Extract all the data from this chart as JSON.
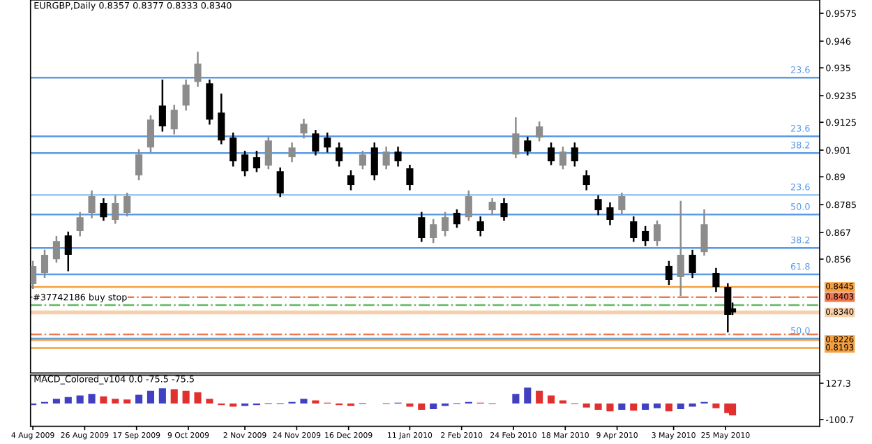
{
  "chart_data": [
    {
      "type": "candlestick",
      "title": "EURGBP,Daily 0.8357 0.8377 0.8333 0.8340",
      "x": [
        "2009-08-04",
        "2009-08-09",
        "2009-08-14",
        "2009-08-19",
        "2009-08-24",
        "2009-08-29",
        "2009-09-03",
        "2009-09-08",
        "2009-09-13",
        "2009-09-18",
        "2009-09-23",
        "2009-09-28",
        "2009-10-03",
        "2009-10-08",
        "2009-10-13",
        "2009-10-18",
        "2009-10-23",
        "2009-10-28",
        "2009-11-02",
        "2009-11-07",
        "2009-11-12",
        "2009-11-17",
        "2009-11-22",
        "2009-11-27",
        "2009-12-02",
        "2009-12-07",
        "2009-12-12",
        "2009-12-17",
        "2009-12-22",
        "2009-12-27",
        "2010-01-01",
        "2010-01-06",
        "2010-01-11",
        "2010-01-16",
        "2010-01-21",
        "2010-01-26",
        "2010-01-31",
        "2010-02-05",
        "2010-02-10",
        "2010-02-15",
        "2010-02-20",
        "2010-02-25",
        "2010-03-02",
        "2010-03-07",
        "2010-03-12",
        "2010-03-17",
        "2010-03-22",
        "2010-03-27",
        "2010-04-01",
        "2010-04-06",
        "2010-04-11",
        "2010-04-16",
        "2010-04-21",
        "2010-04-26",
        "2010-05-01",
        "2010-05-06",
        "2010-05-11",
        "2010-05-16",
        "2010-05-21",
        "2010-05-26",
        "2010-05-28"
      ],
      "ohlc": [
        [
          0.8457,
          0.8549,
          0.844,
          0.8532
        ],
        [
          0.8503,
          0.8595,
          0.8486,
          0.8578
        ],
        [
          0.856,
          0.8652,
          0.8549,
          0.8635
        ],
        [
          0.8658,
          0.867,
          0.8514,
          0.8578
        ],
        [
          0.8676,
          0.8751,
          0.8658,
          0.8733
        ],
        [
          0.8751,
          0.884,
          0.8733,
          0.882
        ],
        [
          0.8791,
          0.8808,
          0.8722,
          0.8733
        ],
        [
          0.8722,
          0.882,
          0.871,
          0.8791
        ],
        [
          0.8751,
          0.8831,
          0.874,
          0.882
        ],
        [
          0.8906,
          0.901,
          0.8889,
          0.8992
        ],
        [
          0.9021,
          0.915,
          0.9004,
          0.9136
        ],
        [
          0.9194,
          0.9298,
          0.909,
          0.9108
        ],
        [
          0.9096,
          0.9194,
          0.9079,
          0.9177
        ],
        [
          0.9194,
          0.9298,
          0.9177,
          0.928
        ],
        [
          0.9292,
          0.9413,
          0.9275,
          0.9367
        ],
        [
          0.9286,
          0.9298,
          0.9119,
          0.9136
        ],
        [
          0.9165,
          0.924,
          0.9038,
          0.905
        ],
        [
          0.9062,
          0.9079,
          0.8946,
          0.8964
        ],
        [
          0.8992,
          0.9004,
          0.8906,
          0.8923
        ],
        [
          0.8981,
          0.9004,
          0.8923,
          0.8935
        ],
        [
          0.8946,
          0.9062,
          0.8935,
          0.905
        ],
        [
          0.8923,
          0.8935,
          0.882,
          0.8831
        ],
        [
          0.8981,
          0.9038,
          0.8964,
          0.9021
        ],
        [
          0.9079,
          0.9136,
          0.9062,
          0.9119
        ],
        [
          0.9079,
          0.909,
          0.8992,
          0.9004
        ],
        [
          0.9062,
          0.9079,
          0.9004,
          0.9021
        ],
        [
          0.9021,
          0.9038,
          0.8946,
          0.8964
        ],
        [
          0.8906,
          0.8923,
          0.8848,
          0.8866
        ],
        [
          0.8946,
          0.9004,
          0.8935,
          0.8992
        ],
        [
          0.9021,
          0.9038,
          0.8889,
          0.8906
        ],
        [
          0.8946,
          0.9021,
          0.8935,
          0.9004
        ],
        [
          0.9004,
          0.9021,
          0.8946,
          0.8964
        ],
        [
          0.8935,
          0.8946,
          0.8848,
          0.8866
        ],
        [
          0.8733,
          0.8751,
          0.8635,
          0.8647
        ],
        [
          0.8647,
          0.8722,
          0.863,
          0.8704
        ],
        [
          0.8676,
          0.8751,
          0.8658,
          0.8733
        ],
        [
          0.8751,
          0.8762,
          0.8693,
          0.8704
        ],
        [
          0.8733,
          0.884,
          0.8722,
          0.882
        ],
        [
          0.8716,
          0.8733,
          0.8658,
          0.8676
        ],
        [
          0.8762,
          0.8808,
          0.8745,
          0.8797
        ],
        [
          0.8791,
          0.8808,
          0.8722,
          0.8733
        ],
        [
          0.8992,
          0.9142,
          0.8981,
          0.9079
        ],
        [
          0.905,
          0.9062,
          0.8992,
          0.9004
        ],
        [
          0.9062,
          0.9125,
          0.905,
          0.9108
        ],
        [
          0.9021,
          0.9038,
          0.8952,
          0.8964
        ],
        [
          0.8946,
          0.9021,
          0.8935,
          0.9004
        ],
        [
          0.9021,
          0.9038,
          0.8946,
          0.8964
        ],
        [
          0.8906,
          0.8923,
          0.8848,
          0.8866
        ],
        [
          0.8808,
          0.882,
          0.8745,
          0.8762
        ],
        [
          0.8774,
          0.8791,
          0.8704,
          0.8722
        ],
        [
          0.8762,
          0.8831,
          0.8751,
          0.882
        ],
        [
          0.8716,
          0.8733,
          0.8635,
          0.8647
        ],
        [
          0.8676,
          0.8693,
          0.8618,
          0.8635
        ],
        [
          0.8635,
          0.8716,
          0.8618,
          0.8704
        ],
        [
          0.8532,
          0.8549,
          0.8457,
          0.8474
        ],
        [
          0.8486,
          0.8797,
          0.8411,
          0.8578
        ],
        [
          0.8578,
          0.8595,
          0.8486,
          0.8503
        ],
        [
          0.8589,
          0.8762,
          0.8578,
          0.8704
        ],
        [
          0.8503,
          0.852,
          0.8428,
          0.8445
        ],
        [
          0.8445,
          0.8457,
          0.8261,
          0.833
        ],
        [
          0.8357,
          0.8377,
          0.8333,
          0.834
        ]
      ],
      "colors": [
        "#8c8c8c",
        "#8c8c8c",
        "#8c8c8c",
        "#000000",
        "#8c8c8c",
        "#8c8c8c",
        "#000000",
        "#8c8c8c",
        "#8c8c8c",
        "#8c8c8c",
        "#8c8c8c",
        "#000000",
        "#8c8c8c",
        "#8c8c8c",
        "#8c8c8c",
        "#000000",
        "#000000",
        "#000000",
        "#000000",
        "#000000",
        "#8c8c8c",
        "#000000",
        "#8c8c8c",
        "#8c8c8c",
        "#000000",
        "#000000",
        "#000000",
        "#000000",
        "#8c8c8c",
        "#000000",
        "#8c8c8c",
        "#000000",
        "#000000",
        "#000000",
        "#8c8c8c",
        "#8c8c8c",
        "#000000",
        "#8c8c8c",
        "#000000",
        "#8c8c8c",
        "#000000",
        "#8c8c8c",
        "#000000",
        "#8c8c8c",
        "#000000",
        "#8c8c8c",
        "#000000",
        "#000000",
        "#000000",
        "#000000",
        "#8c8c8c",
        "#000000",
        "#000000",
        "#8c8c8c",
        "#000000",
        "#8c8c8c",
        "#000000",
        "#8c8c8c",
        "#000000",
        "#000000",
        "#000000"
      ],
      "xlim": [
        "2009-08-03",
        "2010-07-04"
      ],
      "ylim": [
        0.809,
        0.963
      ],
      "yticks": [
        0.9575,
        0.946,
        0.935,
        0.9235,
        0.9125,
        0.901,
        0.89,
        0.8785,
        0.867,
        0.856
      ],
      "tick_labels": "y",
      "ref_lines": [
        {
          "axis": "y",
          "value": 0.9309,
          "color": "#5a9be6",
          "line_style": "solid"
        },
        {
          "axis": "y",
          "value": 0.9067,
          "color": "#5a9be6",
          "line_style": "solid"
        },
        {
          "axis": "y",
          "value": 0.8998,
          "color": "#5a9be6",
          "line_style": "solid"
        },
        {
          "axis": "y",
          "value": 0.8825,
          "color": "#9cc8f0",
          "line_style": "solid"
        },
        {
          "axis": "y",
          "value": 0.8744,
          "color": "#5a9be6",
          "line_style": "solid"
        },
        {
          "axis": "y",
          "value": 0.8606,
          "color": "#5a9be6",
          "line_style": "solid"
        },
        {
          "axis": "y",
          "value": 0.8497,
          "color": "#5a9be6",
          "line_style": "solid"
        },
        {
          "axis": "y",
          "value": 0.8445,
          "label": "0.8445",
          "color": "#f5a040",
          "line_style": "solid"
        },
        {
          "axis": "y",
          "value": 0.8403,
          "label": "0.8403",
          "color": "#f07850",
          "line_style": "dashdot"
        },
        {
          "axis": "y",
          "value": 0.837,
          "color": "#60b860",
          "line_style": "dashdot"
        },
        {
          "axis": "y",
          "value": 0.834,
          "label": "0.8340",
          "color": "#f8cfa8",
          "line_style": "solid"
        },
        {
          "axis": "y",
          "value": 0.8249,
          "color": "#f07850",
          "line_style": "dashdot"
        },
        {
          "axis": "y",
          "value": 0.8232,
          "color": "#5a9be6",
          "line_style": "solid"
        },
        {
          "axis": "y",
          "value": 0.8226,
          "label": "0.8226",
          "color": "#f5a040",
          "line_style": "solid"
        },
        {
          "axis": "y",
          "value": 0.8193,
          "label": "0.8193",
          "color": "#f5a040",
          "line_style": "solid"
        }
      ],
      "annotations": [
        {
          "text": "#37742186 buy stop",
          "x": "2009-08-04",
          "y": 0.837
        },
        {
          "text": "23.6",
          "x": "2010-06-30",
          "y": 0.9309
        },
        {
          "text": "23.6",
          "x": "2010-06-30",
          "y": 0.9067
        },
        {
          "text": "38.2",
          "x": "2010-06-30",
          "y": 0.8998
        },
        {
          "text": "23.6",
          "x": "2010-06-30",
          "y": 0.8825
        },
        {
          "text": "50.0",
          "x": "2010-06-30",
          "y": 0.8744
        },
        {
          "text": "38.2",
          "x": "2010-06-30",
          "y": 0.8606
        },
        {
          "text": "61.8",
          "x": "2010-06-30",
          "y": 0.8497
        },
        {
          "text": "50.0",
          "x": "2010-06-30",
          "y": 0.8232
        }
      ],
      "grid": false
    },
    {
      "type": "bar",
      "title": "MACD_Colored_v104 0.0 -75.5 -75.5",
      "x": [
        "2009-08-04",
        "2009-08-09",
        "2009-08-14",
        "2009-08-19",
        "2009-08-24",
        "2009-08-29",
        "2009-09-03",
        "2009-09-08",
        "2009-09-13",
        "2009-09-18",
        "2009-09-23",
        "2009-09-28",
        "2009-10-03",
        "2009-10-08",
        "2009-10-13",
        "2009-10-18",
        "2009-10-23",
        "2009-10-28",
        "2009-11-02",
        "2009-11-07",
        "2009-11-12",
        "2009-11-17",
        "2009-11-22",
        "2009-11-27",
        "2009-12-02",
        "2009-12-07",
        "2009-12-12",
        "2009-12-17",
        "2009-12-22",
        "2009-12-27",
        "2010-01-01",
        "2010-01-06",
        "2010-01-11",
        "2010-01-16",
        "2010-01-21",
        "2010-01-26",
        "2010-01-31",
        "2010-02-05",
        "2010-02-10",
        "2010-02-15",
        "2010-02-20",
        "2010-02-25",
        "2010-03-02",
        "2010-03-07",
        "2010-03-12",
        "2010-03-17",
        "2010-03-22",
        "2010-03-27",
        "2010-04-01",
        "2010-04-06",
        "2010-04-11",
        "2010-04-16",
        "2010-04-21",
        "2010-04-26",
        "2010-05-01",
        "2010-05-06",
        "2010-05-11",
        "2010-05-16",
        "2010-05-21",
        "2010-05-26",
        "2010-05-28"
      ],
      "values": [
        -10,
        10,
        30,
        40,
        50,
        60,
        45,
        30,
        25,
        55,
        80,
        95,
        90,
        80,
        70,
        30,
        -10,
        -20,
        -15,
        -10,
        -5,
        -5,
        10,
        30,
        20,
        5,
        -10,
        -15,
        -5,
        0,
        -5,
        5,
        -20,
        -40,
        -35,
        -15,
        -5,
        10,
        5,
        -5,
        0,
        60,
        100,
        80,
        50,
        20,
        -5,
        -25,
        -40,
        -50,
        -40,
        -45,
        -40,
        -30,
        -50,
        -35,
        -20,
        10,
        -30,
        -60,
        -75
      ],
      "colors": [
        "#4040c0",
        "#4040c0",
        "#4040c0",
        "#4040c0",
        "#4040c0",
        "#4040c0",
        "#e03030",
        "#e03030",
        "#e03030",
        "#4040c0",
        "#4040c0",
        "#4040c0",
        "#e03030",
        "#e03030",
        "#e03030",
        "#e03030",
        "#e03030",
        "#e03030",
        "#4040c0",
        "#4040c0",
        "#4040c0",
        "#4040c0",
        "#4040c0",
        "#4040c0",
        "#e03030",
        "#e03030",
        "#e03030",
        "#e03030",
        "#4040c0",
        "#4040c0",
        "#e03030",
        "#4040c0",
        "#e03030",
        "#e03030",
        "#4040c0",
        "#4040c0",
        "#4040c0",
        "#4040c0",
        "#e03030",
        "#e03030",
        "#4040c0",
        "#4040c0",
        "#4040c0",
        "#e03030",
        "#e03030",
        "#e03030",
        "#e03030",
        "#e03030",
        "#e03030",
        "#e03030",
        "#4040c0",
        "#e03030",
        "#4040c0",
        "#4040c0",
        "#e03030",
        "#4040c0",
        "#4040c0",
        "#4040c0",
        "#e03030",
        "#e03030",
        "#e03030"
      ],
      "xlim": [
        "2009-08-03",
        "2010-07-04"
      ],
      "ylim": [
        -143,
        178
      ],
      "yticks": [
        127.3,
        -100.7
      ],
      "xticks": [
        {
          "value": "2009-08-04",
          "label": "4 Aug 2009"
        },
        {
          "value": "2009-08-26",
          "label": "26 Aug 2009"
        },
        {
          "value": "2009-09-17",
          "label": "17 Sep 2009"
        },
        {
          "value": "2009-10-09",
          "label": "9 Oct 2009"
        },
        {
          "value": "2009-11-02",
          "label": "2 Nov 2009"
        },
        {
          "value": "2009-11-24",
          "label": "24 Nov 2009"
        },
        {
          "value": "2009-12-16",
          "label": "16 Dec 2009"
        },
        {
          "value": "2010-01-11",
          "label": "11 Jan 2010"
        },
        {
          "value": "2010-02-02",
          "label": "2 Feb 2010"
        },
        {
          "value": "2010-02-24",
          "label": "24 Feb 2010"
        },
        {
          "value": "2010-03-18",
          "label": "18 Mar 2010"
        },
        {
          "value": "2010-04-09",
          "label": "9 Apr 2010"
        },
        {
          "value": "2010-05-03",
          "label": "3 May 2010"
        },
        {
          "value": "2010-05-25",
          "label": "25 May 2010"
        }
      ]
    }
  ]
}
